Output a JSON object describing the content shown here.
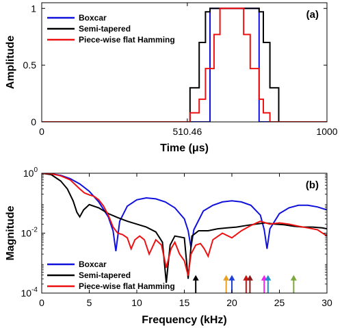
{
  "chart_data": [
    {
      "type": "line",
      "panel_label": "(a)",
      "xlabel": "Time (μs)",
      "ylabel": "Amplitude",
      "xlim": [
        0,
        1000
      ],
      "ylim": [
        0,
        1.05
      ],
      "x_ticks": [
        {
          "value": 0,
          "label": "0"
        },
        {
          "value": 510.46,
          "label": "510.46"
        },
        {
          "value": 1000,
          "label": "1000"
        }
      ],
      "y_ticks": [
        {
          "value": 0,
          "label": "0"
        },
        {
          "value": 0.5,
          "label": "0.5"
        },
        {
          "value": 1,
          "label": "1"
        }
      ],
      "legend_position": "top-left",
      "series": [
        {
          "name": "Boxcar",
          "color": "#1010dd",
          "x": [
            0,
            590,
            590,
            762,
            762,
            1000
          ],
          "y": [
            0,
            0,
            1,
            1,
            0,
            0
          ]
        },
        {
          "name": "Semi-tapered",
          "color": "#000000",
          "x": [
            0,
            520,
            520,
            552,
            552,
            574,
            574,
            590,
            590,
            762,
            762,
            777,
            777,
            800,
            800,
            831,
            831,
            1000
          ],
          "y": [
            0,
            0,
            0.3,
            0.3,
            0.7,
            0.7,
            0.97,
            0.97,
            1,
            1,
            0.97,
            0.97,
            0.7,
            0.7,
            0.3,
            0.3,
            0,
            0
          ]
        },
        {
          "name": "Piece-wise flat Hamming",
          "color": "#ee1111",
          "x": [
            0,
            520,
            520,
            552,
            552,
            574,
            574,
            604,
            604,
            625,
            625,
            708,
            708,
            731,
            731,
            762,
            762,
            777,
            777,
            800,
            800,
            831,
            831,
            1000
          ],
          "y": [
            0,
            0,
            0.08,
            0.08,
            0.2,
            0.2,
            0.47,
            0.47,
            0.77,
            0.77,
            1,
            1,
            0.77,
            0.77,
            0.47,
            0.47,
            0.2,
            0.2,
            0.08,
            0.08,
            0,
            0,
            0,
            0
          ]
        }
      ]
    },
    {
      "type": "line",
      "panel_label": "(b)",
      "xlabel": "Frequency (kHz)",
      "ylabel": "Magnitude",
      "xlim": [
        0,
        30
      ],
      "ylim": [
        0.0001,
        1
      ],
      "yscale": "log",
      "x_ticks": [
        {
          "value": 0,
          "label": "0"
        },
        {
          "value": 5,
          "label": "5"
        },
        {
          "value": 10,
          "label": "10"
        },
        {
          "value": 15,
          "label": "15"
        },
        {
          "value": 20,
          "label": "20"
        },
        {
          "value": 25,
          "label": "25"
        },
        {
          "value": 30,
          "label": "30"
        }
      ],
      "y_ticks": [
        {
          "value": 0.0001,
          "base": "10",
          "exp": "-4"
        },
        {
          "value": 0.01,
          "base": "10",
          "exp": "-2"
        },
        {
          "value": 1,
          "base": "10",
          "exp": "0"
        }
      ],
      "legend_position": "bottom-left",
      "series": [
        {
          "name": "Boxcar",
          "color": "#1010dd",
          "x": [
            0,
            1,
            2,
            3,
            4,
            5,
            6,
            7,
            7.5,
            7.8,
            8.2,
            9,
            10,
            11,
            12,
            13,
            14,
            15,
            15.4,
            15.7,
            16,
            17,
            18,
            19,
            20,
            21,
            22,
            23,
            23.4,
            23.7,
            24,
            25,
            26,
            27,
            28,
            29,
            30
          ],
          "y": [
            1,
            0.96,
            0.85,
            0.66,
            0.44,
            0.25,
            0.11,
            0.035,
            0.012,
            0.0025,
            0.025,
            0.08,
            0.13,
            0.15,
            0.14,
            0.11,
            0.07,
            0.03,
            0.012,
            0.0033,
            0.013,
            0.055,
            0.085,
            0.11,
            0.12,
            0.11,
            0.085,
            0.04,
            0.013,
            0.003,
            0.014,
            0.045,
            0.07,
            0.085,
            0.085,
            0.075,
            0.06
          ]
        },
        {
          "name": "Semi-tapered",
          "color": "#000000",
          "x": [
            0,
            1,
            2,
            2.7,
            3.3,
            3.7,
            4,
            4.4,
            5,
            6,
            7,
            8,
            9,
            10,
            11,
            12,
            12.7,
            13.1,
            13.5,
            14,
            15,
            15.4,
            15.8,
            16.5,
            17.5,
            18.5,
            19.5,
            20.5,
            21.5,
            22.5,
            23.5,
            24.5,
            25.5,
            26.5,
            27.5,
            28.5,
            29.5,
            30
          ],
          "y": [
            1,
            0.9,
            0.55,
            0.3,
            0.12,
            0.05,
            0.035,
            0.06,
            0.09,
            0.07,
            0.045,
            0.033,
            0.025,
            0.02,
            0.016,
            0.011,
            0.005,
            0.00022,
            0.004,
            0.008,
            0.007,
            0.0003,
            0.008,
            0.012,
            0.012,
            0.014,
            0.015,
            0.016,
            0.018,
            0.02,
            0.022,
            0.02,
            0.019,
            0.017,
            0.016,
            0.016,
            0.015,
            0.014
          ]
        },
        {
          "name": "Piece-wise flat Hamming",
          "color": "#ee1111",
          "x": [
            0,
            1,
            2,
            3,
            4,
            4.5,
            5,
            5.5,
            6,
            6.5,
            7,
            7.5,
            8,
            8.5,
            9,
            9.4,
            9.8,
            10.3,
            10.8,
            11.3,
            12,
            12.6,
            13.1,
            13.6,
            14,
            14.5,
            15,
            15.4,
            15.7,
            16.2,
            16.7,
            17.1,
            17.5,
            18,
            19,
            20,
            21,
            22,
            23,
            24,
            25,
            26,
            27,
            28,
            29,
            30
          ],
          "y": [
            1,
            0.96,
            0.82,
            0.6,
            0.3,
            0.22,
            0.19,
            0.17,
            0.13,
            0.08,
            0.04,
            0.016,
            0.01,
            0.009,
            0.007,
            0.003,
            0.006,
            0.008,
            0.006,
            0.002,
            0.006,
            0.004,
            0.0007,
            0.003,
            0.005,
            0.002,
            0.0012,
            0.00038,
            0.002,
            0.004,
            0.0045,
            0.003,
            0.0017,
            0.006,
            0.01,
            0.007,
            0.012,
            0.018,
            0.025,
            0.02,
            0.022,
            0.02,
            0.017,
            0.015,
            0.013,
            0.008
          ]
        }
      ],
      "arrows": [
        {
          "x": 16.2,
          "color": "#000000"
        },
        {
          "x": 19.4,
          "color": "#e8a020"
        },
        {
          "x": 20.0,
          "color": "#1e3fd8"
        },
        {
          "x": 21.5,
          "color": "#cc1111"
        },
        {
          "x": 21.9,
          "color": "#8b1a1a"
        },
        {
          "x": 23.4,
          "color": "#ee22ee"
        },
        {
          "x": 23.8,
          "color": "#1a8fc8"
        },
        {
          "x": 26.5,
          "color": "#7aa83a"
        }
      ],
      "arrow_tip_value": 0.0004
    }
  ]
}
